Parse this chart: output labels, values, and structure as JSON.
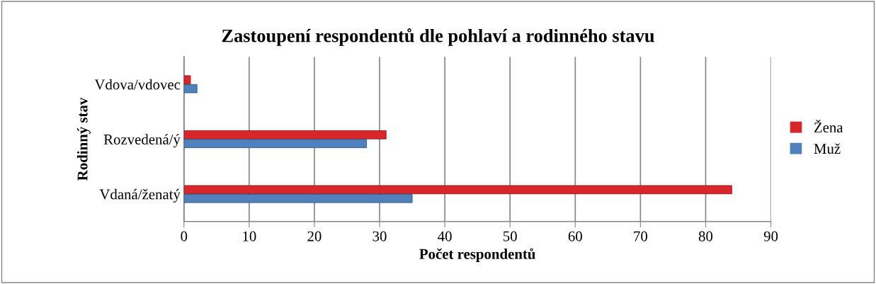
{
  "chart_data": {
    "type": "bar",
    "orientation": "horizontal",
    "title": "Zastoupení respondentů dle pohlaví a rodinného stavu",
    "xlabel": "Počet respondentů",
    "ylabel": "Rodinný stav",
    "categories": [
      "Vdova/vdovec",
      "Rozvedená/ý",
      "Vdaná/ženatý"
    ],
    "series": [
      {
        "name": "Žena",
        "color": "#d9262b",
        "values": [
          1,
          31,
          84
        ]
      },
      {
        "name": "Muž",
        "color": "#4f81bd",
        "values": [
          2,
          28,
          35
        ]
      }
    ],
    "xlim": [
      0,
      90
    ],
    "xticks": [
      0,
      10,
      20,
      30,
      40,
      50,
      60,
      70,
      80,
      90
    ],
    "grid": "x",
    "legend": "right"
  }
}
